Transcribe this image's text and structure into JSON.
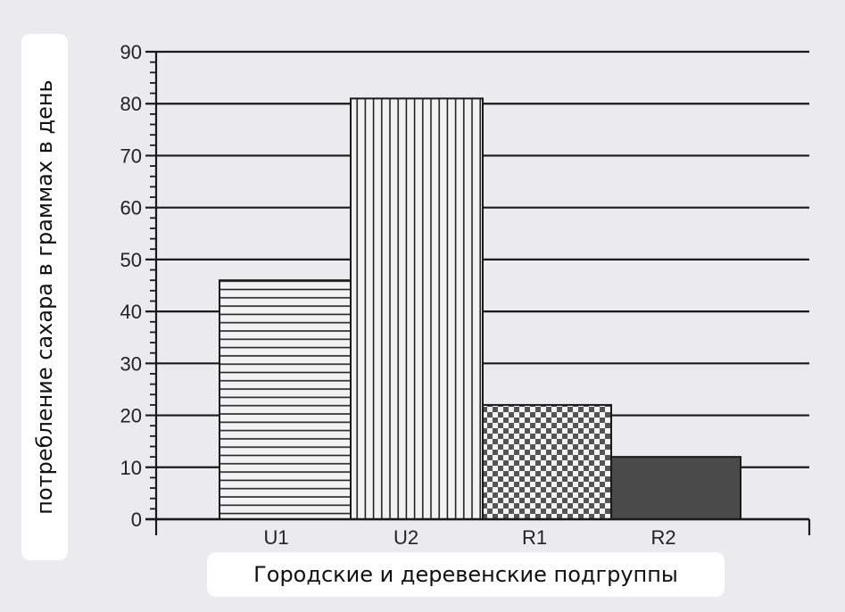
{
  "chart_data": {
    "type": "bar",
    "categories": [
      "U1",
      "U2",
      "R1",
      "R2"
    ],
    "values": [
      46,
      81,
      22,
      12
    ],
    "patterns": [
      "horizontal-lines",
      "vertical-lines",
      "checkered",
      "dark-solid"
    ],
    "title": "",
    "xlabel": "Городские и деревенские подгруппы",
    "ylabel": "потребление сахара в граммах в день",
    "ylim": [
      0,
      90
    ],
    "yticks": [
      "0",
      "10",
      "20",
      "30",
      "40",
      "50",
      "60",
      "70",
      "80",
      "90"
    ],
    "grid": true,
    "colors": {
      "line": "#1a1a1a",
      "dark_bar": "#4a4a4a",
      "background": "#ebeaec"
    }
  }
}
